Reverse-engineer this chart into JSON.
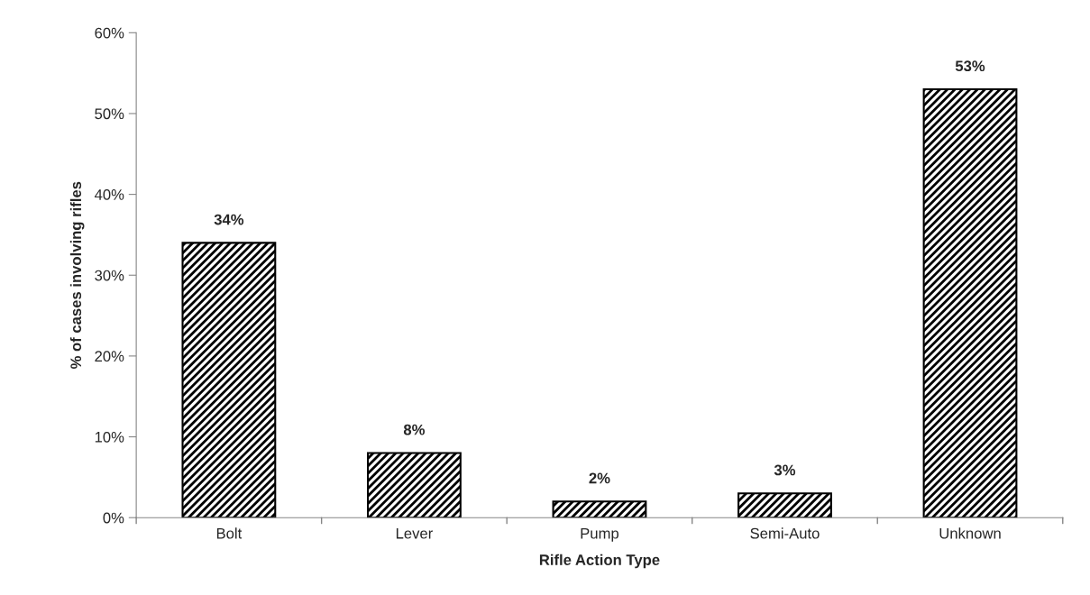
{
  "chart_data": {
    "type": "bar",
    "xlabel": "Rifle Action Type",
    "ylabel": "% of cases involving rifles",
    "categories": [
      "Bolt",
      "Lever",
      "Pump",
      "Semi-Auto",
      "Unknown"
    ],
    "values": [
      34,
      8,
      2,
      3,
      53
    ],
    "value_labels": [
      "34%",
      "8%",
      "2%",
      "3%",
      "53%"
    ],
    "color": "#000000",
    "ylim": [
      0,
      60
    ],
    "yticks": [
      {
        "value": 0,
        "label": "0%"
      },
      {
        "value": 10,
        "label": "10%"
      },
      {
        "value": 20,
        "label": "20%"
      },
      {
        "value": 30,
        "label": "30%"
      },
      {
        "value": 40,
        "label": "40%"
      },
      {
        "value": 50,
        "label": "50%"
      },
      {
        "value": 60,
        "label": "60%"
      }
    ],
    "grid": false,
    "legend": false
  }
}
